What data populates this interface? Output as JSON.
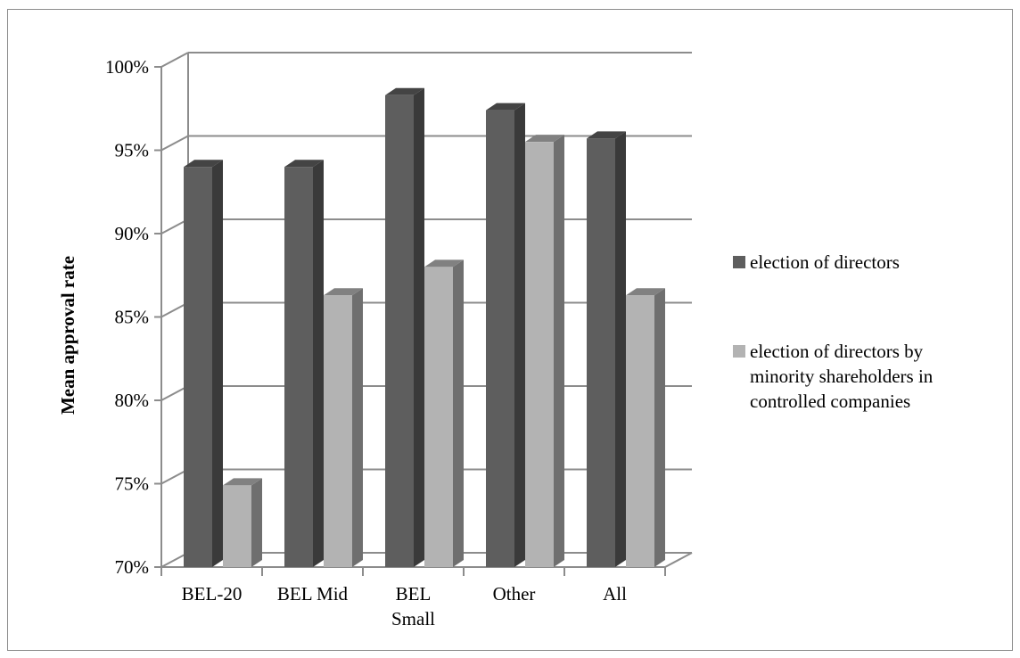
{
  "chart_data": {
    "type": "bar",
    "three_d": true,
    "title": "",
    "xlabel": "",
    "ylabel": "Mean approval rate",
    "categories": [
      [
        "BEL-20"
      ],
      [
        "BEL Mid"
      ],
      [
        "BEL",
        "Small"
      ],
      [
        "Other"
      ],
      [
        "All"
      ]
    ],
    "y_ticks": [
      "70%",
      "75%",
      "80%",
      "85%",
      "90%",
      "95%",
      "100%"
    ],
    "ylim": [
      0.7,
      1.0
    ],
    "grid": true,
    "legend_position": "right",
    "series": [
      {
        "name": [
          "election of directors"
        ],
        "color": "#5e5e5e",
        "values": [
          0.94,
          0.94,
          0.983,
          0.974,
          0.957
        ]
      },
      {
        "name": [
          "election of directors by",
          "minority shareholders in",
          "controlled companies"
        ],
        "color": "#b3b3b3",
        "values": [
          0.749,
          0.863,
          0.88,
          0.955,
          0.863
        ]
      }
    ]
  }
}
